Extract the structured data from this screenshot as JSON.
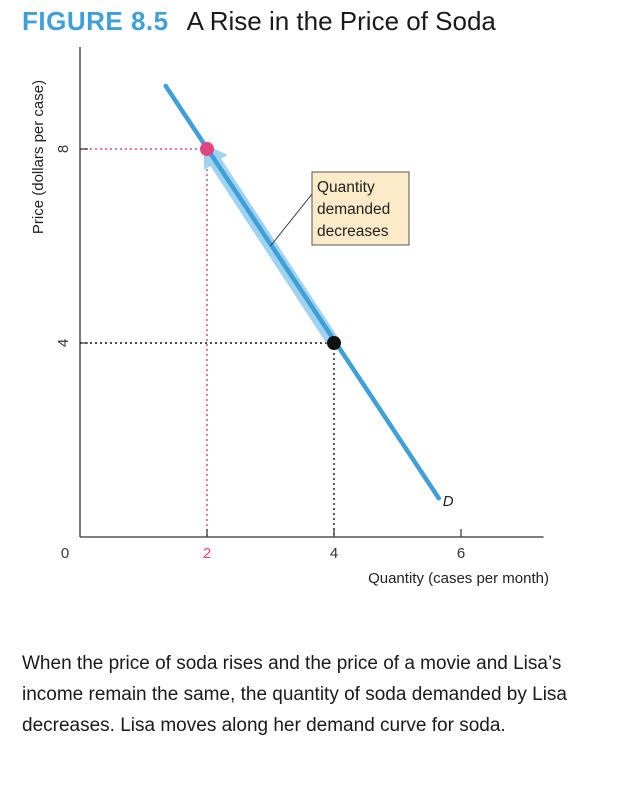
{
  "figure": {
    "number": "FIGURE 8.5",
    "title": "A Rise in the Price of Soda"
  },
  "chart_data": {
    "type": "line",
    "xlabel": "Quantity (cases per month)",
    "ylabel": "Price (dollars per case)",
    "origin_label": "0",
    "xlim": [
      0,
      7.3
    ],
    "ylim": [
      0,
      10
    ],
    "x_ticks": [
      {
        "value": 2,
        "label": "2",
        "color": "#e0457f"
      },
      {
        "value": 4,
        "label": "4",
        "color": "#333333"
      },
      {
        "value": 6,
        "label": "6",
        "color": "#333333"
      }
    ],
    "y_ticks": [
      {
        "value": 4,
        "label": "4"
      },
      {
        "value": 8,
        "label": "8"
      }
    ],
    "series": [
      {
        "name": "D",
        "x": [
          1.35,
          5.65
        ],
        "y": [
          9.3,
          0.8
        ],
        "color": "#3f9fd8"
      }
    ],
    "points": [
      {
        "x": 2,
        "y": 8,
        "color": "#e0457f"
      },
      {
        "x": 4,
        "y": 4,
        "color": "#111111"
      }
    ],
    "arrow": {
      "from": [
        4,
        4
      ],
      "to": [
        2,
        8
      ],
      "color": "#9fd3ef"
    },
    "annotation": {
      "lines": [
        "Quantity",
        "demanded",
        "decreases"
      ],
      "fill": "#fcebc9",
      "pointer_at": [
        3.0,
        6.0
      ]
    }
  },
  "caption": "When the price of soda rises and the price of a movie and Lisa’s income remain the same, the quantity of soda demanded by Lisa decreases. Lisa moves along her demand curve for soda."
}
